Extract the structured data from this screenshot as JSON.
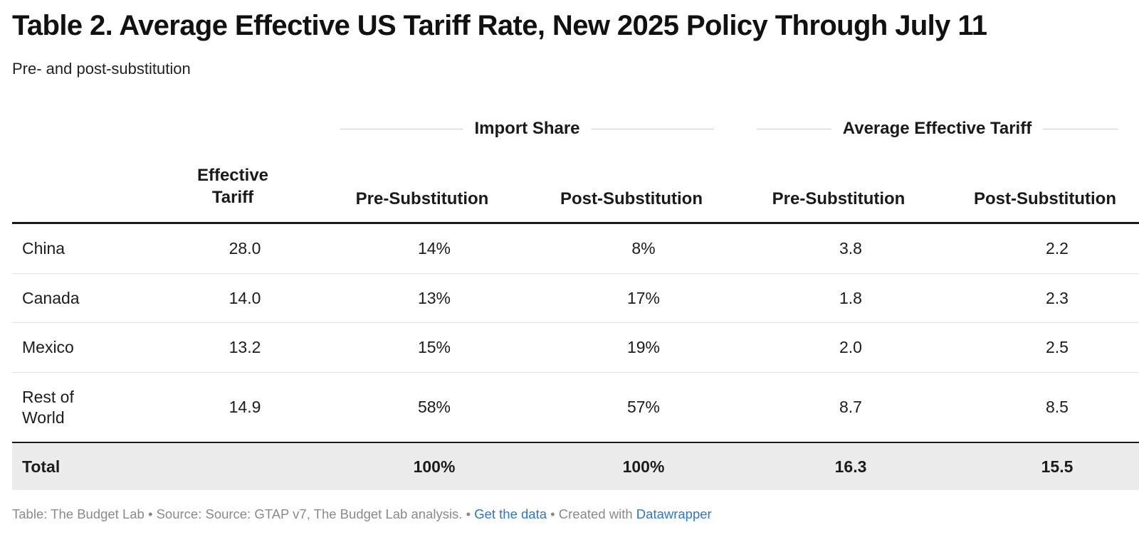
{
  "title": "Table 2. Average Effective US Tariff Rate, New 2025 Policy Through July 11",
  "subtitle": "Pre- and post-substitution",
  "groups": {
    "import_share": "Import Share",
    "avg_effective_tariff": "Average Effective Tariff"
  },
  "columns": {
    "effective_tariff_line1": "Effective",
    "effective_tariff_line2": "Tariff",
    "import_pre": "Pre-Substitution",
    "import_post": "Post-Substitution",
    "tariff_pre": "Pre-Substitution",
    "tariff_post": "Post-Substitution"
  },
  "rows": [
    {
      "label": "China",
      "effective_tariff": "28.0",
      "import_pre": "14%",
      "import_post": "8%",
      "tariff_pre": "3.8",
      "tariff_post": "2.2"
    },
    {
      "label": "Canada",
      "effective_tariff": "14.0",
      "import_pre": "13%",
      "import_post": "17%",
      "tariff_pre": "1.8",
      "tariff_post": "2.3"
    },
    {
      "label": "Mexico",
      "effective_tariff": "13.2",
      "import_pre": "15%",
      "import_post": "19%",
      "tariff_pre": "2.0",
      "tariff_post": "2.5"
    },
    {
      "label_line1": "Rest of",
      "label_line2": "World",
      "effective_tariff": "14.9",
      "import_pre": "58%",
      "import_post": "57%",
      "tariff_pre": "8.7",
      "tariff_post": "8.5"
    }
  ],
  "total": {
    "label": "Total",
    "effective_tariff": "",
    "import_pre": "100%",
    "import_post": "100%",
    "tariff_pre": "16.3",
    "tariff_post": "15.5"
  },
  "footer": {
    "text": "Table: The Budget Lab • Source: Source: GTAP v7, The Budget Lab analysis. • ",
    "get_data_link": "Get the data",
    "created_with": " • Created with ",
    "datawrapper_link": "Datawrapper"
  },
  "colors": {
    "link": "#2c78c8",
    "total_bg": "#ececec",
    "footer_text": "#8a8a8a"
  },
  "chart_data": {
    "type": "table",
    "title": "Table 2. Average Effective US Tariff Rate, New 2025 Policy Through July 11",
    "subtitle": "Pre- and post-substitution",
    "column_groups": [
      {
        "name": "",
        "columns": [
          "Effective Tariff"
        ]
      },
      {
        "name": "Import Share",
        "columns": [
          "Pre-Substitution",
          "Post-Substitution"
        ]
      },
      {
        "name": "Average Effective Tariff",
        "columns": [
          "Pre-Substitution",
          "Post-Substitution"
        ]
      }
    ],
    "categories": [
      "China",
      "Canada",
      "Mexico",
      "Rest of World",
      "Total"
    ],
    "series": [
      {
        "name": "Effective Tariff",
        "values": [
          28.0,
          14.0,
          13.2,
          14.9,
          null
        ]
      },
      {
        "name": "Import Share Pre-Substitution (%)",
        "values": [
          14,
          13,
          15,
          58,
          100
        ]
      },
      {
        "name": "Import Share Post-Substitution (%)",
        "values": [
          8,
          17,
          19,
          57,
          100
        ]
      },
      {
        "name": "Average Effective Tariff Pre-Substitution",
        "values": [
          3.8,
          1.8,
          2.0,
          8.7,
          16.3
        ]
      },
      {
        "name": "Average Effective Tariff Post-Substitution",
        "values": [
          2.2,
          2.3,
          2.5,
          8.5,
          15.5
        ]
      }
    ]
  }
}
